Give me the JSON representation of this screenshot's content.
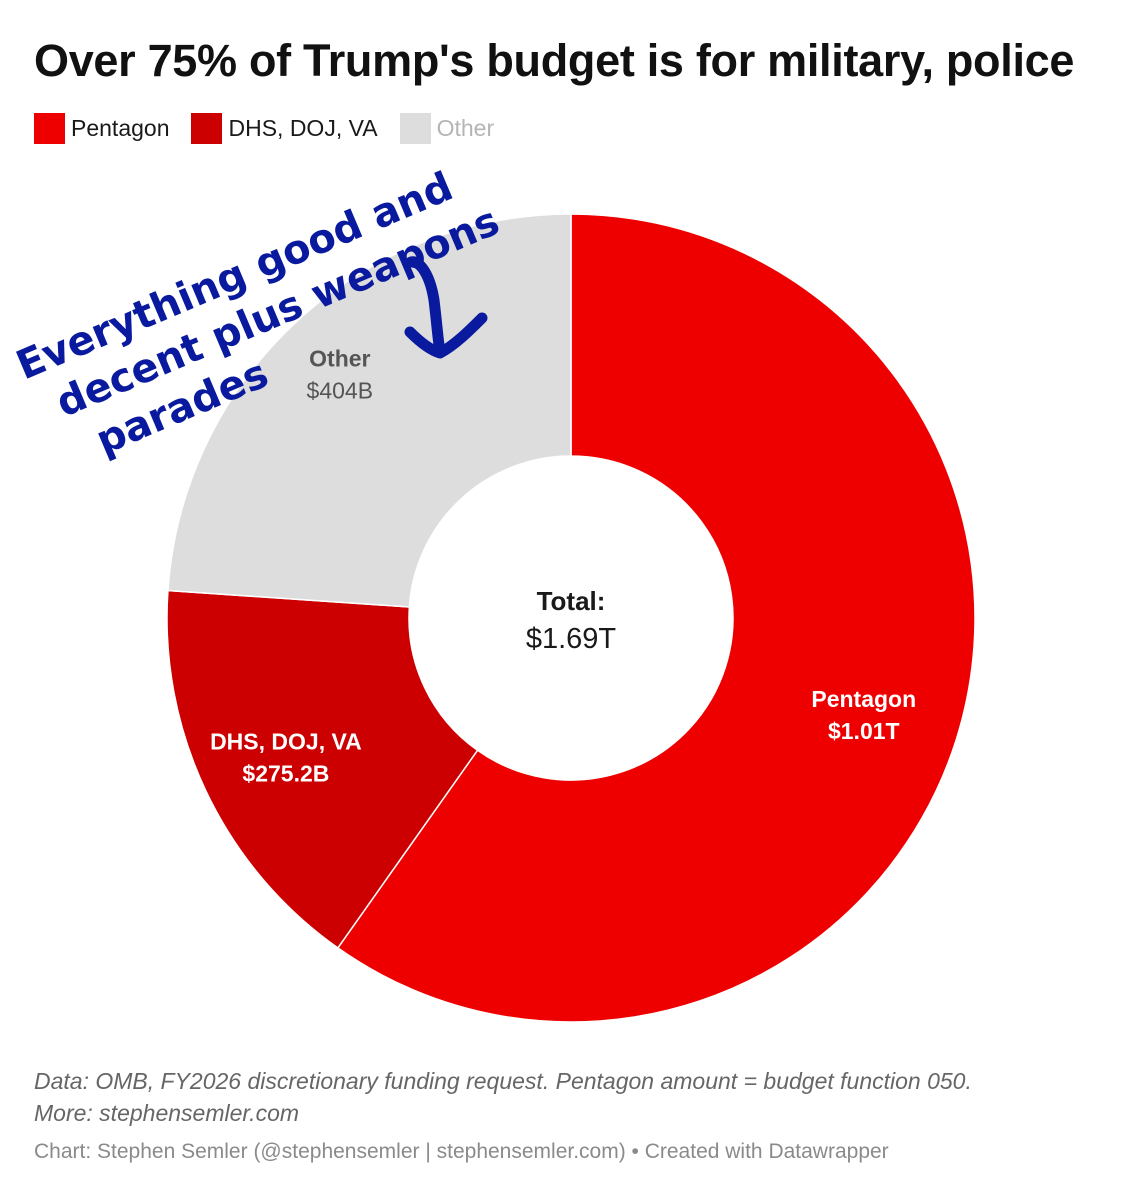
{
  "header": {
    "title": "Over 75% of Trump's budget is for military, police"
  },
  "chart_data": {
    "type": "pie",
    "style": "donut",
    "title": "Over 75% of Trump's budget is for military, police",
    "unit": "USD",
    "slices": [
      {
        "name": "Pentagon",
        "value": 1010,
        "value_label": "$1.01T",
        "color": "#ee0000",
        "label_color": "#ffffff"
      },
      {
        "name": "DHS, DOJ, VA",
        "value": 275.2,
        "value_label": "$275.2B",
        "color": "#cc0000",
        "label_color": "#ffffff"
      },
      {
        "name": "Other",
        "value": 404,
        "value_label": "$404B",
        "color": "#dddddd",
        "label_color": "#555555"
      }
    ],
    "center_label": "Total:",
    "center_value": "$1.69T",
    "legend": {
      "placement": "top-left",
      "items": [
        {
          "label": "Pentagon",
          "color": "#ee0000",
          "text_color": "#1a1a1a"
        },
        {
          "label": "DHS, DOJ, VA",
          "color": "#cc0000",
          "text_color": "#1a1a1a"
        },
        {
          "label": "Other",
          "color": "#dddddd",
          "text_color": "#b5b5b5"
        }
      ]
    },
    "annotation": {
      "lines": [
        "Everything good and",
        "decent plus weapons",
        "parades"
      ],
      "color": "#0a1a9e",
      "arrow_color": "#0a1a9e"
    }
  },
  "footer": {
    "source_line1": "Data: OMB, FY2026 discretionary funding request. Pentagon amount = budget function 050.",
    "source_line2": "More: stephensemler.com",
    "credit": "Chart: Stephen Semler (@stephensemler | stephensemler.com) • Created with Datawrapper"
  }
}
